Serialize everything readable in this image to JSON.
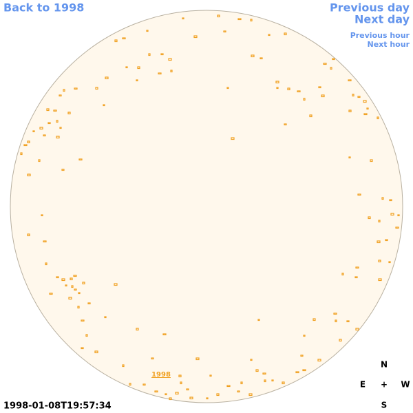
{
  "navigation": {
    "back": "Back to 1998",
    "previous_day": "Previous day",
    "next_day": "Next day",
    "previous_hour": "Previous hour",
    "next_hour": "Next hour"
  },
  "disk_label": "1998",
  "timestamp": "1998-01-08T19:57:34",
  "compass": {
    "north": "N",
    "east": "E",
    "center": "+",
    "west": "W",
    "south": "S"
  }
}
